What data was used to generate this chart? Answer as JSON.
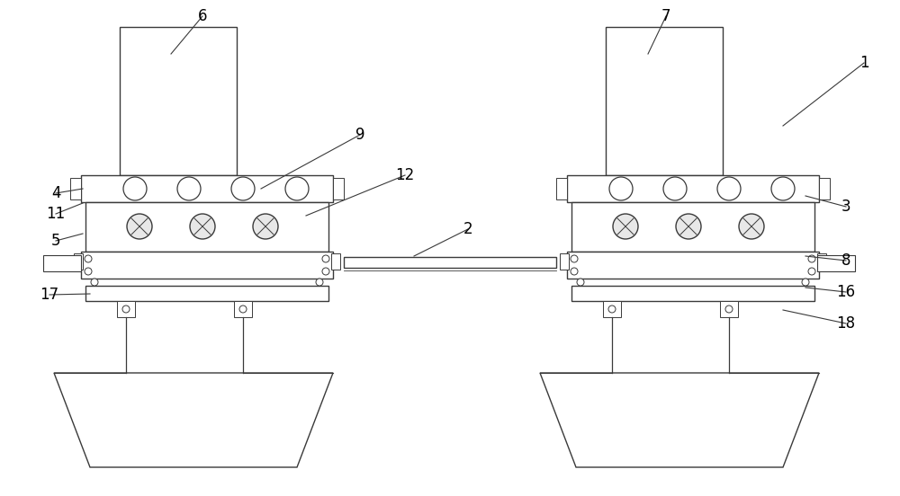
{
  "bg_color": "#ffffff",
  "line_color": "#3a3a3a",
  "lw": 1.0,
  "fig_width": 10.0,
  "fig_height": 5.52
}
